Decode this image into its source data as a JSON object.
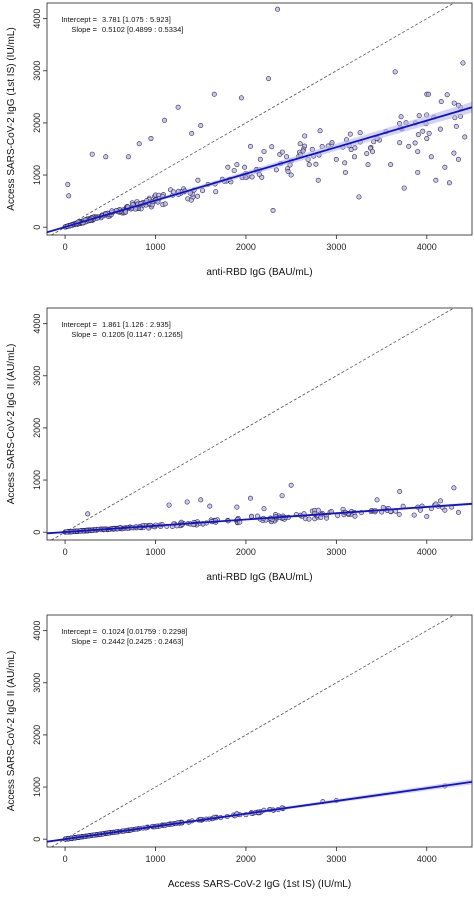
{
  "chart_data": [
    {
      "type": "scatter",
      "xlabel": "anti-RBD IgG (BAU/mL)",
      "ylabel": "Access SARS-CoV-2 IgG (1st IS) (IU/mL)",
      "xlim": [
        -200,
        4500
      ],
      "ylim": [
        -150,
        4300
      ],
      "x_ticks": [
        0,
        1000,
        2000,
        3000,
        4000
      ],
      "y_ticks": [
        0,
        1000,
        2000,
        3000,
        4000
      ],
      "annotations": [
        {
          "label": "Intercept =",
          "value": "3.781 [1.075 : 5.923]"
        },
        {
          "label": "Slope =",
          "value": "0.5102 [0.4899 : 0.5334]"
        }
      ],
      "fit": {
        "intercept": 3.781,
        "slope": 0.5102
      },
      "identity_line": true,
      "point_count": 380,
      "points": [
        [
          2350,
          4180
        ],
        [
          4400,
          3150
        ],
        [
          3650,
          2980
        ],
        [
          4000,
          2550
        ],
        [
          4020,
          2550
        ],
        [
          2250,
          2850
        ],
        [
          1650,
          2550
        ],
        [
          1950,
          2480
        ],
        [
          1250,
          2300
        ],
        [
          1500,
          1950
        ],
        [
          1100,
          2050
        ],
        [
          1400,
          1800
        ],
        [
          2600,
          1600
        ],
        [
          2820,
          1850
        ],
        [
          3550,
          1830
        ],
        [
          3700,
          1620
        ],
        [
          4150,
          1880
        ],
        [
          4420,
          1730
        ],
        [
          3400,
          1450
        ],
        [
          3800,
          1550
        ],
        [
          4300,
          1420
        ],
        [
          2050,
          1550
        ],
        [
          2200,
          1450
        ],
        [
          2450,
          1350
        ],
        [
          2650,
          1750
        ],
        [
          3900,
          1450
        ],
        [
          4050,
          1350
        ],
        [
          2300,
          320
        ],
        [
          3250,
          580
        ],
        [
          3750,
          750
        ],
        [
          4100,
          900
        ],
        [
          4250,
          850
        ],
        [
          950,
          1700
        ],
        [
          820,
          1600
        ],
        [
          700,
          1350
        ],
        [
          450,
          1350
        ],
        [
          300,
          1400
        ],
        [
          30,
          820
        ],
        [
          40,
          600
        ],
        [
          3100,
          1050
        ],
        [
          2800,
          900
        ],
        [
          3600,
          1200
        ],
        [
          3000,
          1300
        ],
        [
          3900,
          1050
        ],
        [
          4200,
          1150
        ],
        [
          4350,
          1300
        ],
        [
          4000,
          1700
        ],
        [
          1800,
          1150
        ],
        [
          2000,
          950
        ],
        [
          1900,
          1200
        ],
        [
          2150,
          1100
        ],
        [
          2500,
          1000
        ],
        [
          2700,
          1200
        ],
        [
          3200,
          1350
        ],
        [
          3350,
          1200
        ],
        [
          3450,
          1700
        ]
      ],
      "fit_band": true,
      "colors": {
        "point_fill": "#b9b6e0",
        "point_stroke": "#2f2a5a",
        "fit": "#1212c8",
        "band": "#b8b8e8",
        "identity": "#555555"
      }
    },
    {
      "type": "scatter",
      "xlabel": "anti-RBD IgG (BAU/mL)",
      "ylabel": "Access SARS-CoV-2 IgG II (AU/mL)",
      "xlim": [
        -200,
        4500
      ],
      "ylim": [
        -150,
        4300
      ],
      "x_ticks": [
        0,
        1000,
        2000,
        3000,
        4000
      ],
      "y_ticks": [
        0,
        1000,
        2000,
        3000,
        4000
      ],
      "annotations": [
        {
          "label": "Intercept =",
          "value": "1.861 [1.126 : 2.935]"
        },
        {
          "label": "Slope =",
          "value": "0.1205 [0.1147 : 0.1265]"
        }
      ],
      "fit": {
        "intercept": 1.861,
        "slope": 0.1205
      },
      "identity_line": true,
      "point_count": 380,
      "points": [
        [
          2500,
          900
        ],
        [
          4300,
          850
        ],
        [
          3700,
          780
        ],
        [
          2400,
          700
        ],
        [
          2050,
          650
        ],
        [
          1500,
          620
        ],
        [
          1350,
          580
        ],
        [
          1150,
          520
        ],
        [
          3450,
          620
        ],
        [
          4100,
          540
        ],
        [
          1600,
          500
        ],
        [
          250,
          350
        ],
        [
          4000,
          300
        ],
        [
          3100,
          380
        ],
        [
          3600,
          400
        ],
        [
          2800,
          420
        ],
        [
          2200,
          450
        ],
        [
          1900,
          480
        ],
        [
          3900,
          480
        ],
        [
          4200,
          420
        ],
        [
          4350,
          380
        ]
      ],
      "fit_band": true,
      "colors": {
        "point_fill": "#b9b6e0",
        "point_stroke": "#2f2a5a",
        "fit": "#1212c8",
        "band": "#b8b8e8",
        "identity": "#555555"
      }
    },
    {
      "type": "scatter",
      "xlabel": "Access SARS-CoV-2 IgG (1st IS) (IU/mL)",
      "ylabel": "Access SARS-CoV-2 IgG II (AU/mL)",
      "xlim": [
        -200,
        4500
      ],
      "ylim": [
        -150,
        4300
      ],
      "x_ticks": [
        0,
        1000,
        2000,
        3000,
        4000
      ],
      "y_ticks": [
        0,
        1000,
        2000,
        3000,
        4000
      ],
      "annotations": [
        {
          "label": "Intercept =",
          "value": "0.1024 [0.01759 : 0.2298]"
        },
        {
          "label": "Slope =",
          "value": "0.2442 [0.2425 : 0.2463]"
        }
      ],
      "fit": {
        "intercept": 0.1024,
        "slope": 0.2442
      },
      "identity_line": true,
      "point_count": 380,
      "points": [
        [
          4200,
          1020
        ],
        [
          3000,
          740
        ],
        [
          2850,
          720
        ],
        [
          2400,
          600
        ],
        [
          2300,
          560
        ],
        [
          1900,
          490
        ],
        [
          2000,
          470
        ],
        [
          1650,
          420
        ],
        [
          1500,
          380
        ],
        [
          1250,
          320
        ]
      ],
      "fit_band": true,
      "colors": {
        "point_fill": "#b9b6e0",
        "point_stroke": "#2f2a5a",
        "fit": "#1212c8",
        "band": "#b8b8e8",
        "identity": "#555555"
      }
    }
  ]
}
